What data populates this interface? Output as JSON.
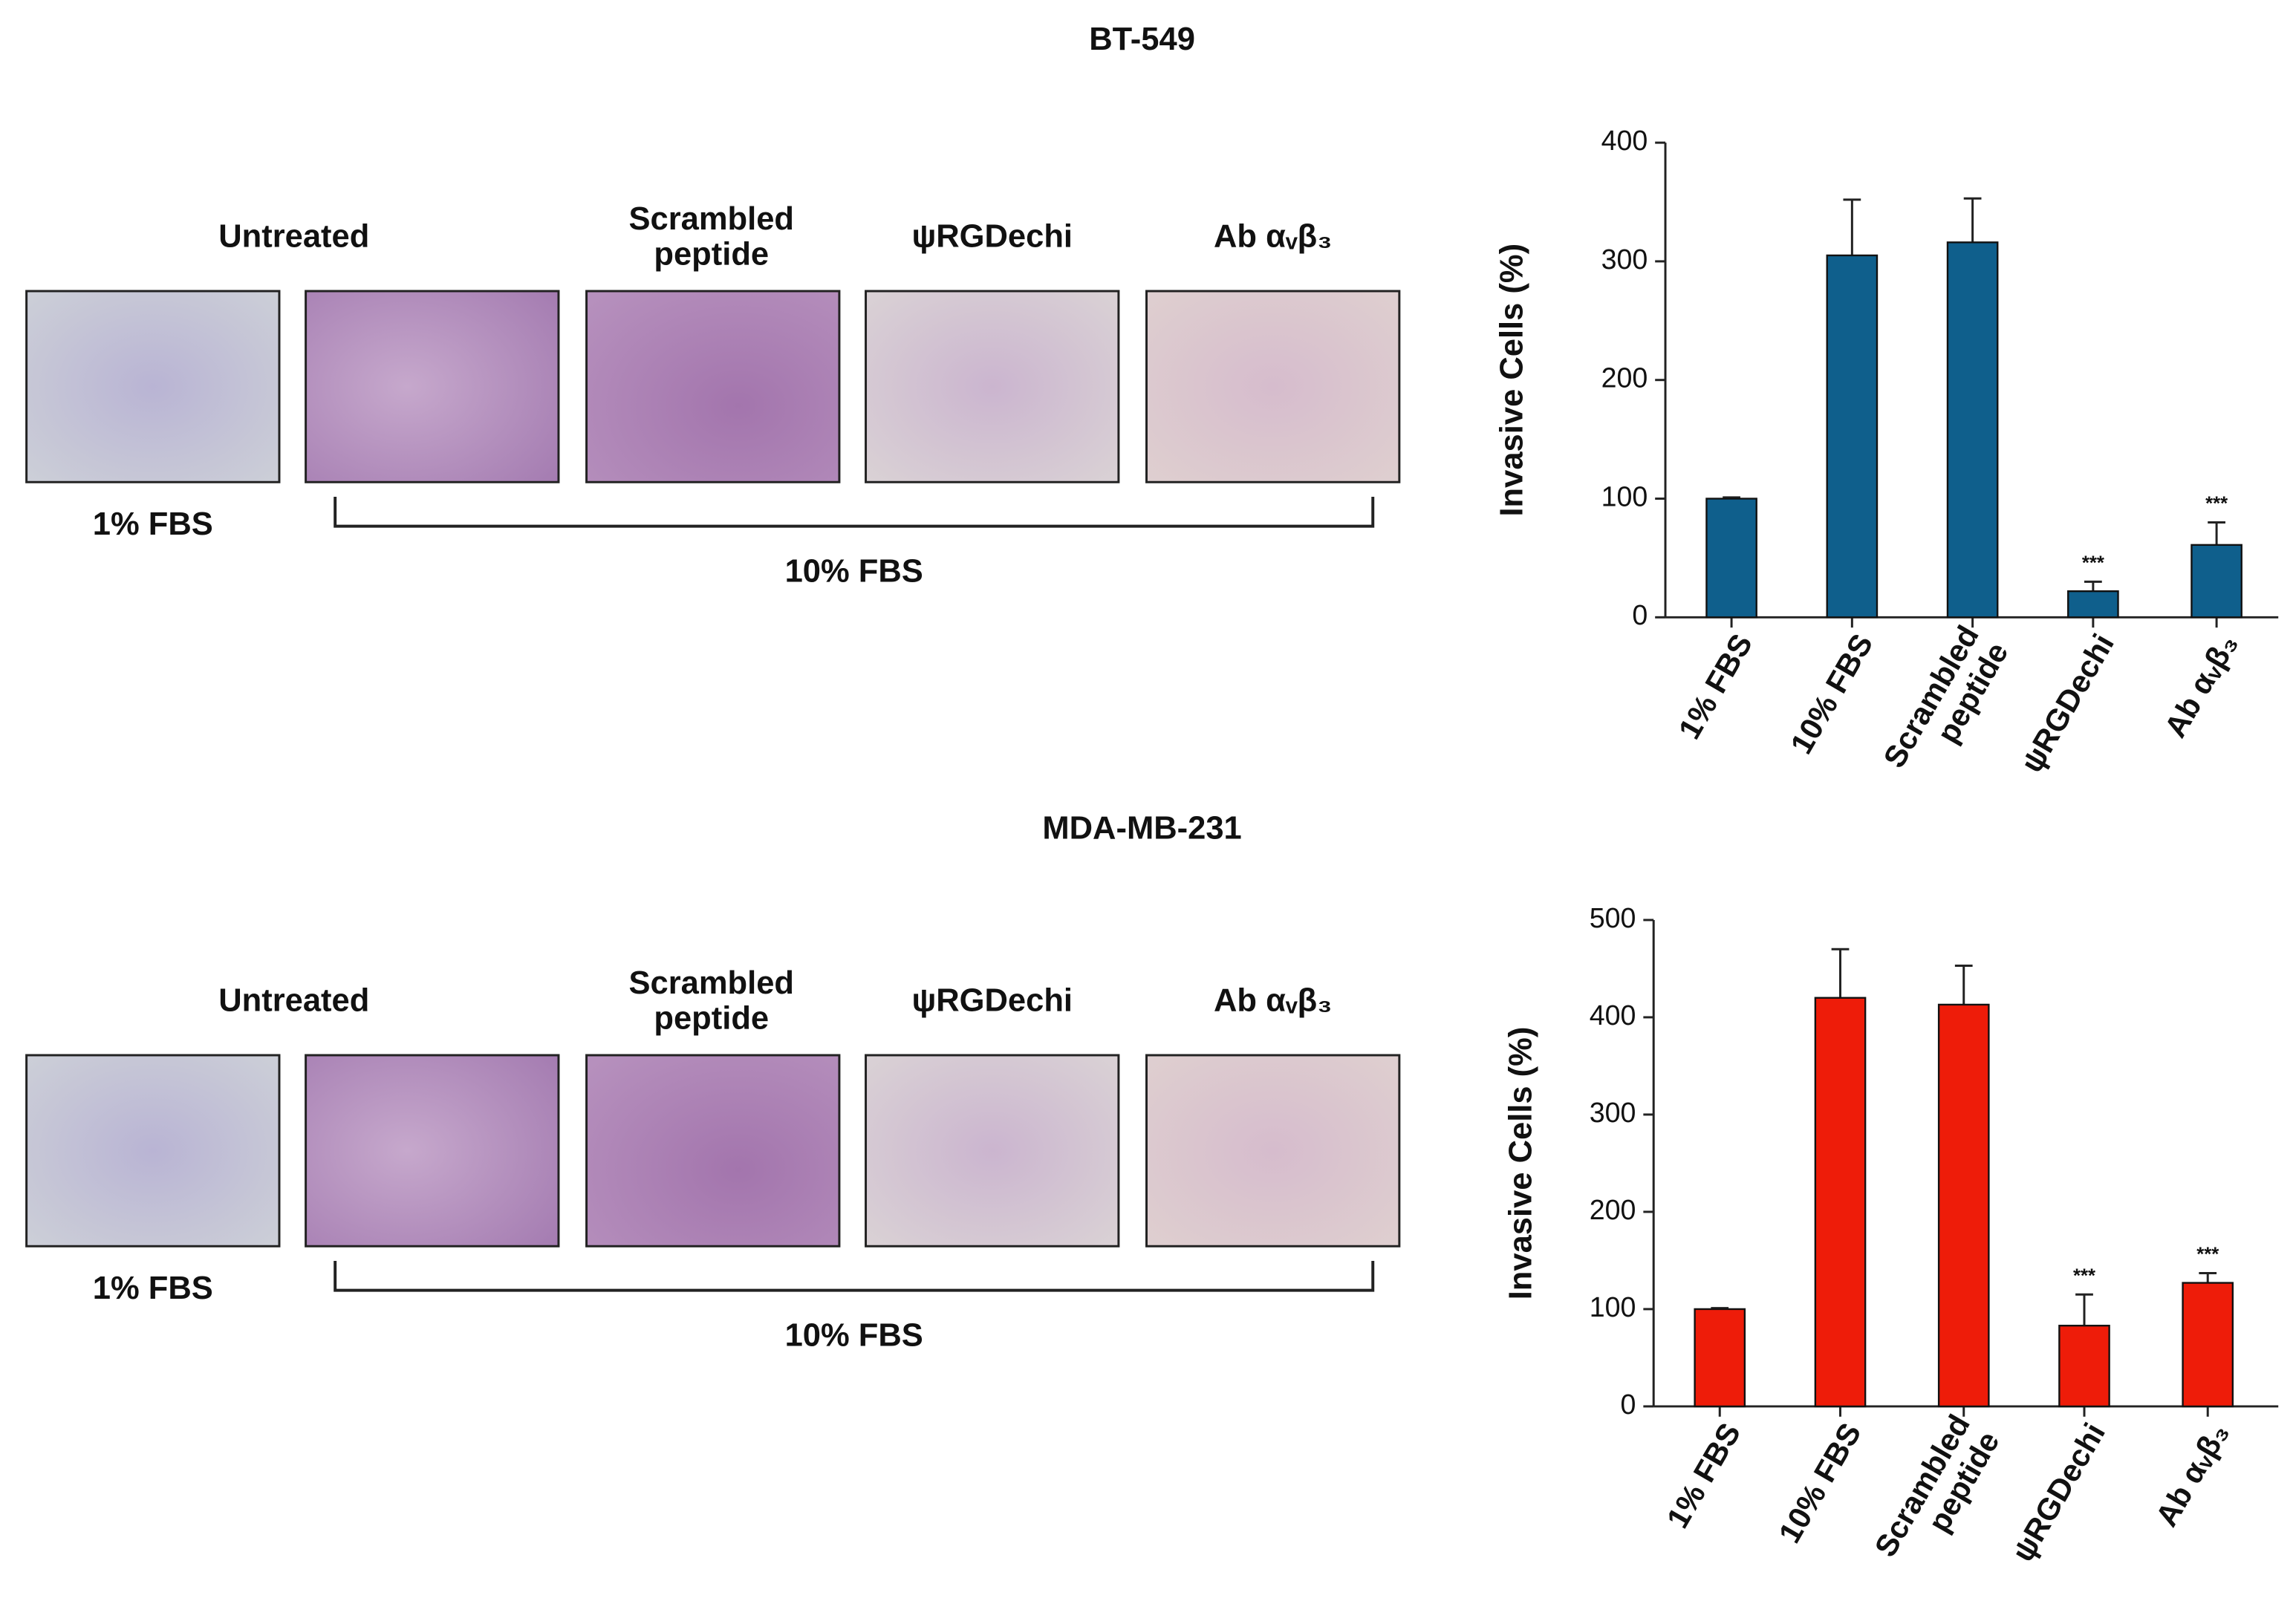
{
  "panels": [
    {
      "title": "BT-549",
      "image_labels": [
        "Untreated",
        "Scrambled\npeptide",
        "ψRGDechi",
        "Ab αᵥβ₃"
      ],
      "low_serum": "1% FBS",
      "high_serum": "10% FBS"
    },
    {
      "title": "MDA-MB-231",
      "image_labels": [
        "Untreated",
        "Scrambled\npeptide",
        "ψRGDechi",
        "Ab αᵥβ₃"
      ],
      "low_serum": "1% FBS",
      "high_serum": "10% FBS"
    }
  ],
  "chart_data": [
    {
      "type": "bar",
      "ylabel": "Invasive Cells (%)",
      "categories": [
        "1% FBS",
        "10% FBS",
        "Scrambled\npeptide",
        "ψRGDechi",
        "Ab αᵥβ₃"
      ],
      "values": [
        100,
        305,
        316,
        22,
        61
      ],
      "errors": [
        1,
        47,
        37,
        8,
        19
      ],
      "annotations": [
        null,
        null,
        null,
        "***",
        "***"
      ],
      "color": "#0f5f8c",
      "ylim": [
        0,
        400
      ],
      "yticks": [
        0,
        100,
        200,
        300,
        400
      ]
    },
    {
      "type": "bar",
      "ylabel": "Invasive Cells (%)",
      "categories": [
        "1% FBS",
        "10% FBS",
        "Scrambled\npeptide",
        "ψRGDechi",
        "Ab αᵥβ₃"
      ],
      "values": [
        100,
        420,
        413,
        83,
        127
      ],
      "errors": [
        1,
        50,
        40,
        32,
        10
      ],
      "annotations": [
        null,
        null,
        null,
        "***",
        "***"
      ],
      "color": "#ee1c09",
      "ylim": [
        0,
        500
      ],
      "yticks": [
        0,
        100,
        200,
        300,
        400,
        500
      ]
    }
  ]
}
